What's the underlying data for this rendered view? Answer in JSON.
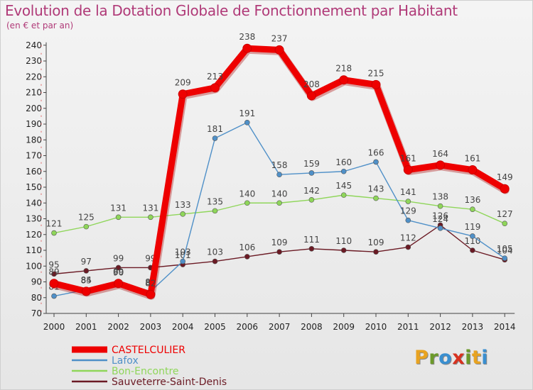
{
  "chart_data": {
    "type": "line",
    "title": "Evolution de la Dotation Globale de Fonctionnement par Habitant",
    "subtitle": "(en € et par an)",
    "xlabel": "",
    "ylabel": "",
    "x": [
      "2000",
      "2001",
      "2002",
      "2003",
      "2004",
      "2005",
      "2006",
      "2007",
      "2008",
      "2009",
      "2010",
      "2011",
      "2012",
      "2013",
      "2014"
    ],
    "ylim": [
      70,
      240
    ],
    "yticks": [
      70,
      80,
      90,
      100,
      110,
      120,
      130,
      140,
      150,
      160,
      170,
      180,
      190,
      200,
      210,
      220,
      230,
      240
    ],
    "grid": false,
    "legend_position": "bottom-left",
    "series": [
      {
        "name": "Sauveterre-Saint-Denis",
        "color": "#6b1a24",
        "values": [
          95,
          97,
          99,
          99,
          101,
          103,
          106,
          109,
          111,
          110,
          109,
          112,
          126,
          110,
          104
        ]
      },
      {
        "name": "Bon-Encontre",
        "color": "#8fd65a",
        "values": [
          121,
          125,
          131,
          131,
          133,
          135,
          140,
          140,
          142,
          145,
          143,
          141,
          138,
          136,
          127
        ]
      },
      {
        "name": "Lafox",
        "color": "#4f90c8",
        "values": [
          81,
          85,
          90,
          84,
          103,
          181,
          191,
          158,
          159,
          160,
          166,
          129,
          124,
          119,
          105
        ]
      },
      {
        "name": "CASTELCULIER",
        "color": "#ee0000",
        "values": [
          89,
          84,
          89,
          82,
          209,
          213,
          238,
          237,
          208,
          218,
          215,
          161,
          164,
          161,
          149
        ]
      }
    ],
    "legend": [
      "CASTELCULIER",
      "Lafox",
      "Bon-Encontre",
      "Sauveterre-Saint-Denis"
    ]
  },
  "logo": {
    "letters": [
      "P",
      "r",
      "o",
      "x",
      "i",
      "t",
      "i"
    ],
    "colors": [
      "#e8a321",
      "#6c9a2a",
      "#3a8fd0",
      "#d8321f",
      "#6c9a2a",
      "#e8a321",
      "#3a8fd0"
    ]
  }
}
